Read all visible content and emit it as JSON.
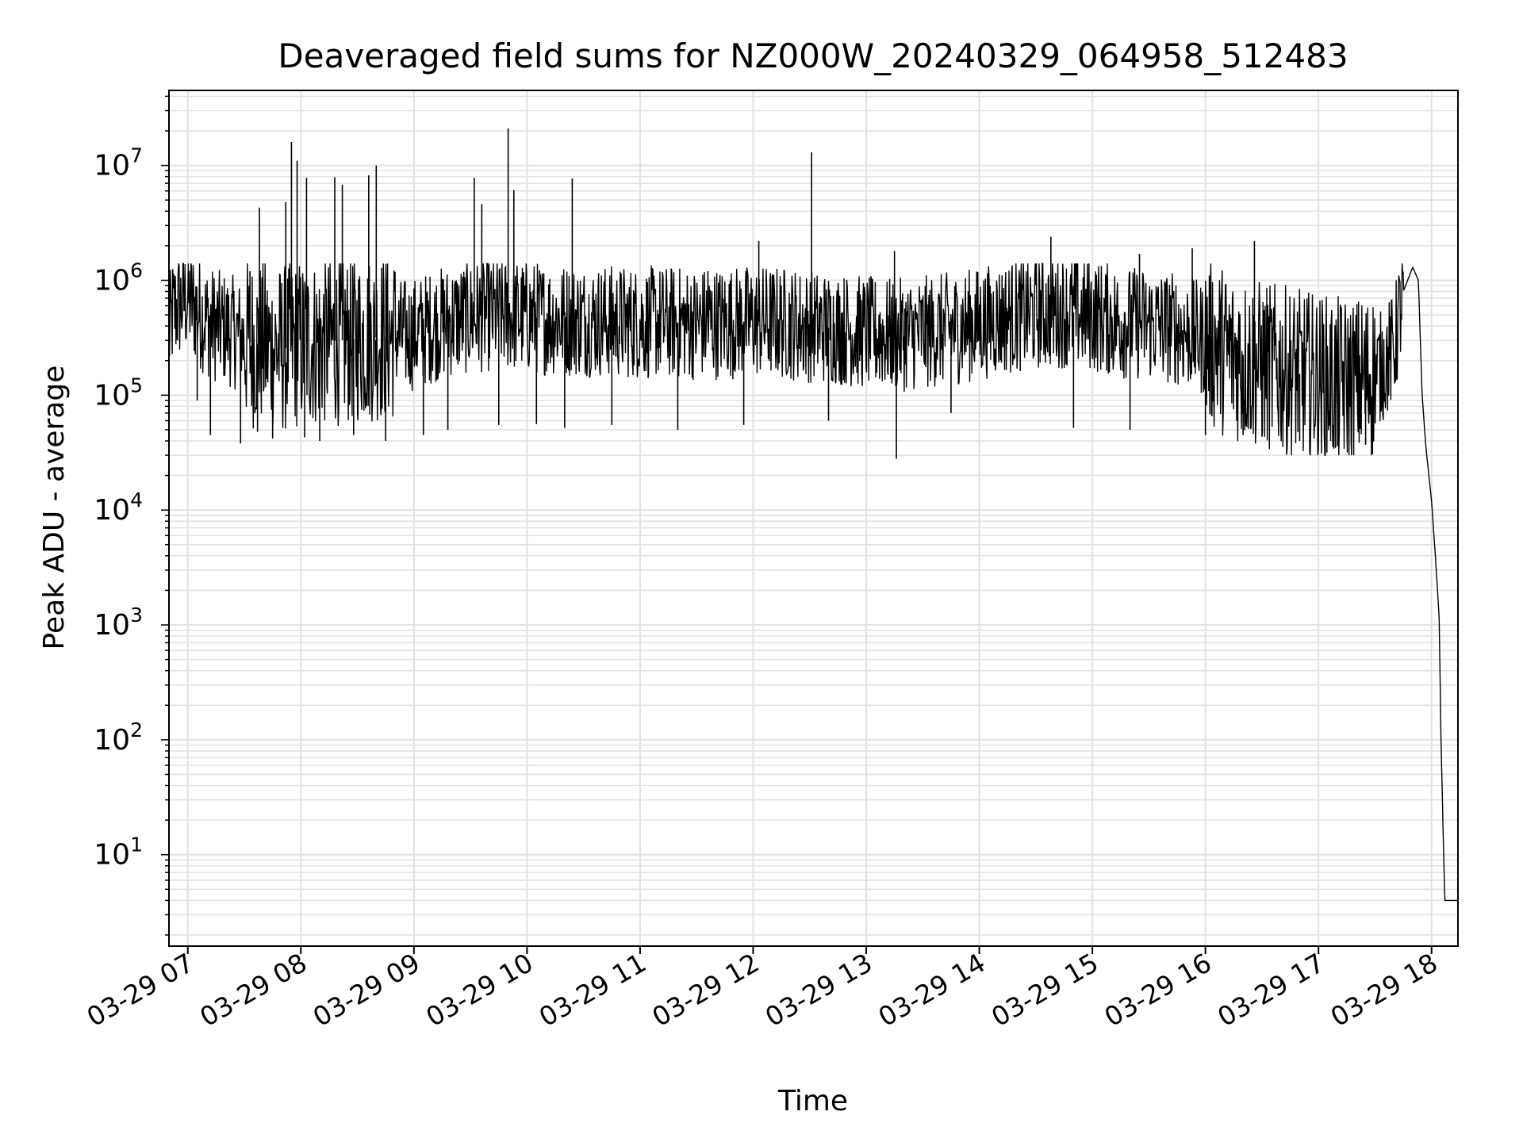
{
  "chart_data": {
    "type": "line",
    "title": "Deaveraged field sums for NZ000W_20240329_064958_512483",
    "xlabel": "Time",
    "ylabel": "Peak ADU - average",
    "yscale": "log",
    "grid": true,
    "legend": "none",
    "line_color": "#000000",
    "x_ticks": [
      "03-29 07",
      "03-29 08",
      "03-29 09",
      "03-29 10",
      "03-29 11",
      "03-29 12",
      "03-29 13",
      "03-29 14",
      "03-29 15",
      "03-29 16",
      "03-29 17",
      "03-29 18"
    ],
    "xlim": [
      "2024-03-29 06:50",
      "2024-03-29 18:14"
    ],
    "ylim": [
      1.6,
      45000000
    ],
    "y_ticks": [
      {
        "base": "10",
        "exp": "1"
      },
      {
        "base": "10",
        "exp": "2"
      },
      {
        "base": "10",
        "exp": "3"
      },
      {
        "base": "10",
        "exp": "4"
      },
      {
        "base": "10",
        "exp": "5"
      },
      {
        "base": "10",
        "exp": "6"
      },
      {
        "base": "10",
        "exp": "7"
      }
    ],
    "series": [
      {
        "x": [
          "2024-03-29 06:50",
          "2024-03-29 06:52",
          "2024-03-29 06:55",
          "2024-03-29 06:58",
          "2024-03-29 07:00",
          "2024-03-29 07:05",
          "2024-03-29 07:10",
          "2024-03-29 07:15",
          "2024-03-29 07:20",
          "2024-03-29 07:25",
          "2024-03-29 07:30",
          "2024-03-29 07:35",
          "2024-03-29 07:40",
          "2024-03-29 07:45",
          "2024-03-29 07:50",
          "2024-03-29 07:55",
          "2024-03-29 08:00",
          "2024-03-29 08:10",
          "2024-03-29 08:20",
          "2024-03-29 08:30",
          "2024-03-29 08:40",
          "2024-03-29 08:50",
          "2024-03-29 09:00",
          "2024-03-29 09:10",
          "2024-03-29 09:20",
          "2024-03-29 09:30",
          "2024-03-29 09:40",
          "2024-03-29 09:50",
          "2024-03-29 10:00",
          "2024-03-29 10:15",
          "2024-03-29 10:30",
          "2024-03-29 10:45",
          "2024-03-29 11:00",
          "2024-03-29 11:15",
          "2024-03-29 11:30",
          "2024-03-29 11:45",
          "2024-03-29 12:00",
          "2024-03-29 12:15",
          "2024-03-29 12:30",
          "2024-03-29 12:45",
          "2024-03-29 13:00",
          "2024-03-29 13:15",
          "2024-03-29 13:30",
          "2024-03-29 13:45",
          "2024-03-29 14:00",
          "2024-03-29 14:15",
          "2024-03-29 14:30",
          "2024-03-29 14:45",
          "2024-03-29 15:00",
          "2024-03-29 15:15",
          "2024-03-29 15:30",
          "2024-03-29 15:45",
          "2024-03-29 16:00",
          "2024-03-29 16:15",
          "2024-03-29 16:30",
          "2024-03-29 16:45",
          "2024-03-29 17:00",
          "2024-03-29 17:10",
          "2024-03-29 17:20",
          "2024-03-29 17:30",
          "2024-03-29 17:40",
          "2024-03-29 17:45",
          "2024-03-29 17:50",
          "2024-03-29 17:53",
          "2024-03-29 17:55",
          "2024-03-29 17:57",
          "2024-03-29 18:00",
          "2024-03-29 18:02",
          "2024-03-29 18:04",
          "2024-03-29 18:05",
          "2024-03-29 18:07",
          "2024-03-29 18:08",
          "2024-03-29 18:14"
        ],
        "y": [
          320000,
          520000,
          600000,
          650000,
          700000,
          550000,
          450000,
          400000,
          380000,
          350000,
          300000,
          280000,
          280000,
          260000,
          250000,
          270000,
          280000,
          290000,
          300000,
          310000,
          320000,
          330000,
          340000,
          400000,
          450000,
          480000,
          500000,
          500000,
          480000,
          460000,
          450000,
          440000,
          430000,
          430000,
          420000,
          430000,
          440000,
          430000,
          400000,
          380000,
          350000,
          330000,
          350000,
          380000,
          420000,
          480000,
          520000,
          540000,
          500000,
          430000,
          420000,
          380000,
          300000,
          220000,
          180000,
          160000,
          140000,
          130000,
          130000,
          150000,
          250000,
          800000,
          1300000,
          1000000,
          100000,
          35000,
          12000,
          4000,
          1200,
          100,
          4,
          4,
          4
        ]
      }
    ],
    "spikes": {
      "x": [
        "2024-03-29 07:33",
        "2024-03-29 07:38",
        "2024-03-29 07:52",
        "2024-03-29 07:55",
        "2024-03-29 07:58",
        "2024-03-29 08:03",
        "2024-03-29 08:18",
        "2024-03-29 08:22",
        "2024-03-29 08:36",
        "2024-03-29 08:40",
        "2024-03-29 09:32",
        "2024-03-29 09:36",
        "2024-03-29 09:50",
        "2024-03-29 09:53",
        "2024-03-29 10:24",
        "2024-03-29 11:36",
        "2024-03-29 12:03",
        "2024-03-29 12:31",
        "2024-03-29 13:15",
        "2024-03-29 14:38",
        "2024-03-29 15:25",
        "2024-03-29 15:53",
        "2024-03-29 16:26"
      ],
      "y": [
        1200000,
        4300000,
        4800000,
        16000000,
        11000000,
        7800000,
        7900000,
        6800000,
        8200000,
        10000000,
        7800000,
        4600000,
        21000000,
        6100000,
        7700000,
        1200000,
        2200000,
        13000000,
        1800000,
        2400000,
        1700000,
        1900000,
        2200000
      ]
    },
    "dips": {
      "x": [
        "2024-03-29 07:05",
        "2024-03-29 07:12",
        "2024-03-29 07:28",
        "2024-03-29 07:37",
        "2024-03-29 07:45",
        "2024-03-29 08:02",
        "2024-03-29 08:10",
        "2024-03-29 08:28",
        "2024-03-29 08:45",
        "2024-03-29 09:05",
        "2024-03-29 09:18",
        "2024-03-29 09:45",
        "2024-03-29 10:05",
        "2024-03-29 10:20",
        "2024-03-29 10:45",
        "2024-03-29 11:20",
        "2024-03-29 11:55",
        "2024-03-29 12:40",
        "2024-03-29 13:16",
        "2024-03-29 13:45",
        "2024-03-29 14:50",
        "2024-03-29 15:20",
        "2024-03-29 16:00",
        "2024-03-29 16:20",
        "2024-03-29 16:50",
        "2024-03-29 17:10",
        "2024-03-29 17:25"
      ],
      "y": [
        90000,
        45000,
        38000,
        48000,
        42000,
        43000,
        40000,
        45000,
        40000,
        45000,
        50000,
        55000,
        56000,
        52000,
        55000,
        50000,
        55000,
        60000,
        28000,
        70000,
        52000,
        50000,
        45000,
        45000,
        40000,
        36000,
        37000
      ]
    }
  }
}
